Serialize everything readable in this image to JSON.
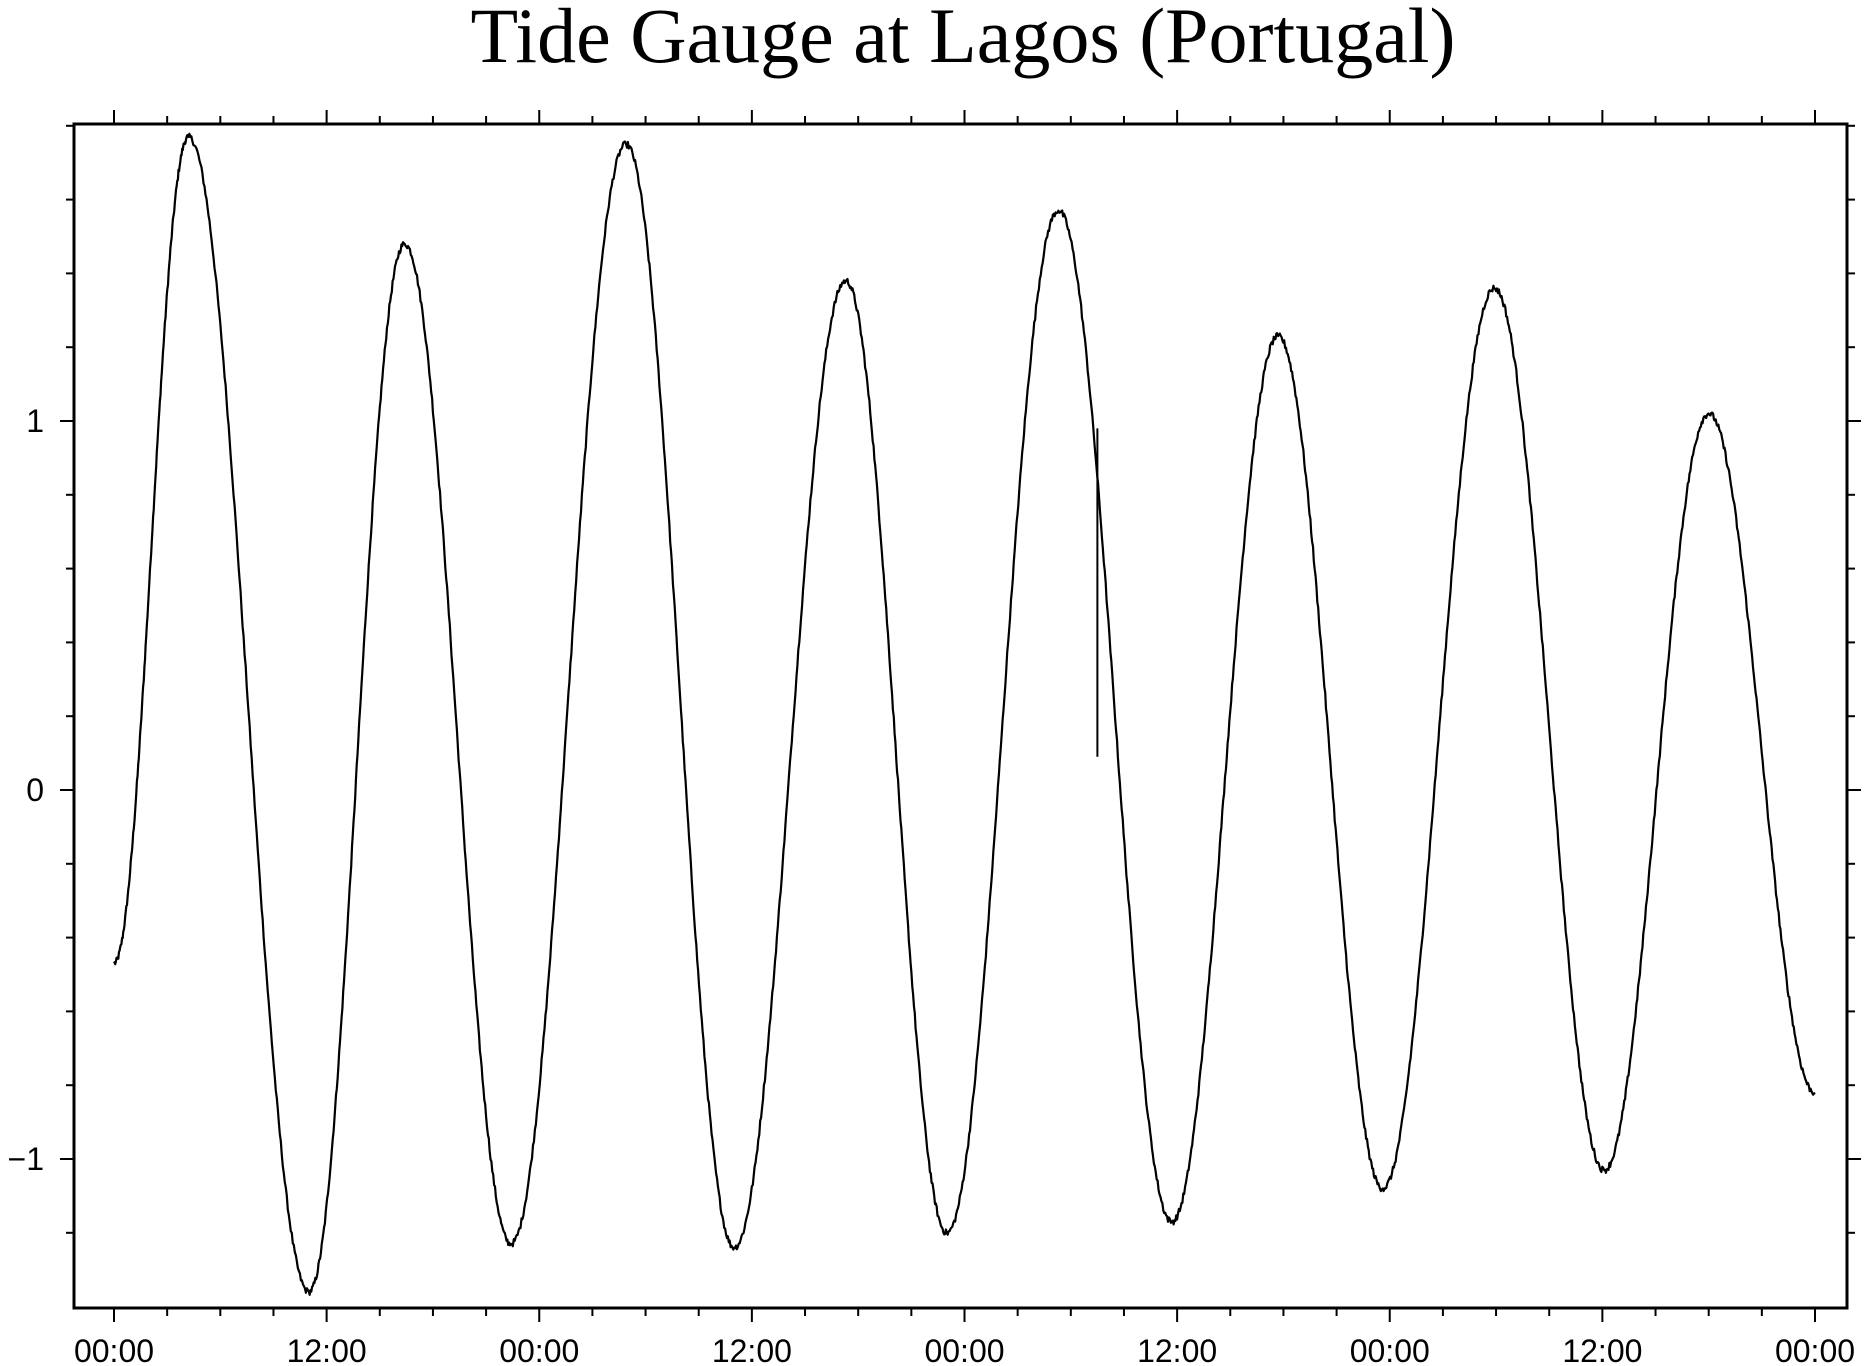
{
  "chart_data": {
    "type": "line",
    "title": "Tide Gauge at Lagos (Portugal)",
    "xlabel": "",
    "ylabel": "",
    "x_unit": "hours",
    "xlim": [
      0,
      96
    ],
    "ylim": [
      -1.4,
      1.8
    ],
    "grid": false,
    "legend": "none",
    "x_ticks": [
      {
        "value": 0,
        "label": "00:00"
      },
      {
        "value": 12,
        "label": "12:00"
      },
      {
        "value": 24,
        "label": "00:00"
      },
      {
        "value": 36,
        "label": "12:00"
      },
      {
        "value": 48,
        "label": "00:00"
      },
      {
        "value": 60,
        "label": "12:00"
      },
      {
        "value": 72,
        "label": "00:00"
      },
      {
        "value": 84,
        "label": "12:00"
      },
      {
        "value": 96,
        "label": "00:00"
      }
    ],
    "y_ticks": [
      {
        "value": -1,
        "label": "−1"
      },
      {
        "value": 0,
        "label": "0"
      },
      {
        "value": 1,
        "label": "1"
      }
    ],
    "series": [
      {
        "x": [
          0,
          4.2,
          11.0,
          16.4,
          22.4,
          28.9,
          35.0,
          41.3,
          47.0,
          53.3,
          59.7,
          65.7,
          71.6,
          77.9,
          84.1,
          90.0,
          96.0
        ],
        "y": [
          -0.47,
          1.77,
          -1.36,
          1.48,
          -1.23,
          1.75,
          -1.24,
          1.38,
          -1.2,
          1.57,
          -1.17,
          1.23,
          -1.08,
          1.36,
          -1.03,
          1.02,
          -0.82
        ]
      }
    ],
    "spike": {
      "x": 55.5,
      "y_from": 0.98,
      "y_to": 0.09
    }
  }
}
